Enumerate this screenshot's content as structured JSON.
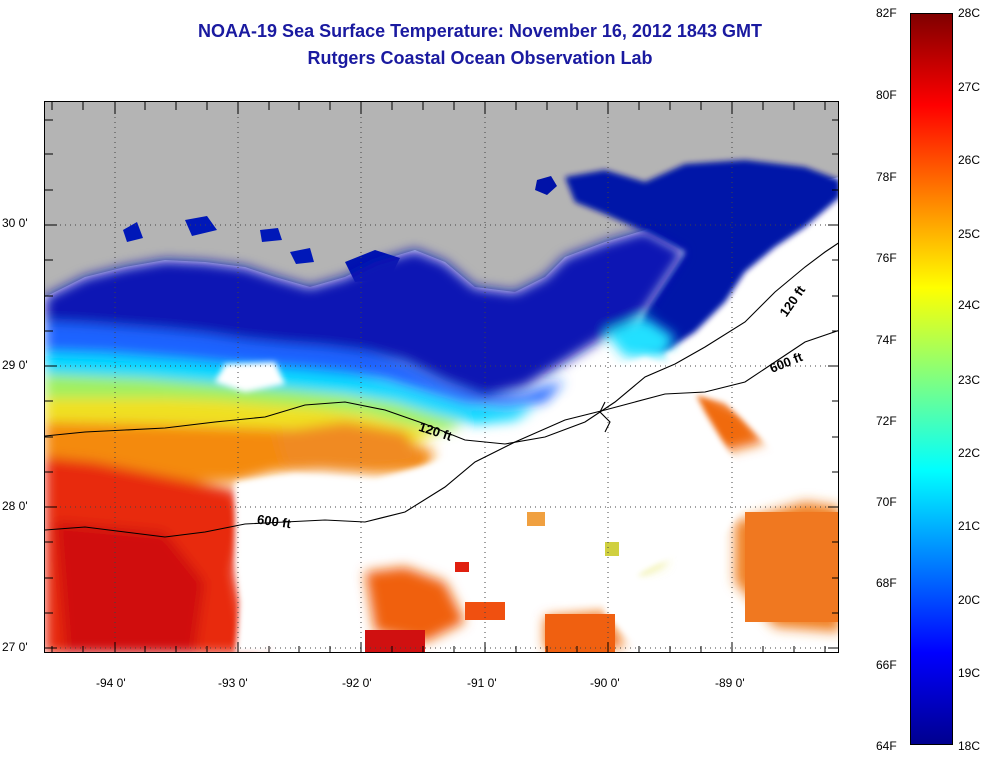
{
  "title": {
    "line1": "NOAA-19 Sea Surface Temperature:  November 16, 2012 1843 GMT",
    "line2": "Rutgers Coastal Ocean Observation Lab"
  },
  "map": {
    "lat_labels": [
      "30 0'",
      "29 0'",
      "28 0'",
      "27 0'"
    ],
    "lon_labels": [
      "-94 0'",
      "-93 0'",
      "-92 0'",
      "-91 0'",
      "-90 0'",
      "-89 0'"
    ],
    "isobaths": [
      {
        "label": "120 ft"
      },
      {
        "label": "120 ft"
      },
      {
        "label": "600 ft"
      },
      {
        "label": "600 ft"
      }
    ],
    "colors": {
      "land": "#b4b4b4",
      "cloud_nodata": "#ffffff",
      "cold": "#0010a0",
      "warm": "#e01010"
    }
  },
  "colorbar": {
    "fahrenheit": [
      "82F",
      "80F",
      "78F",
      "76F",
      "74F",
      "72F",
      "70F",
      "68F",
      "66F",
      "64F"
    ],
    "celsius": [
      "28C",
      "27C",
      "26C",
      "25C",
      "24C",
      "23C",
      "22C",
      "21C",
      "20C",
      "19C",
      "18C"
    ],
    "range_f": [
      64,
      82
    ],
    "range_c": [
      18,
      28
    ],
    "gradient": [
      "#00008f",
      "#0000ff",
      "#0080ff",
      "#00ffff",
      "#80ff80",
      "#ffff00",
      "#ff8000",
      "#ff0000",
      "#800000"
    ]
  }
}
